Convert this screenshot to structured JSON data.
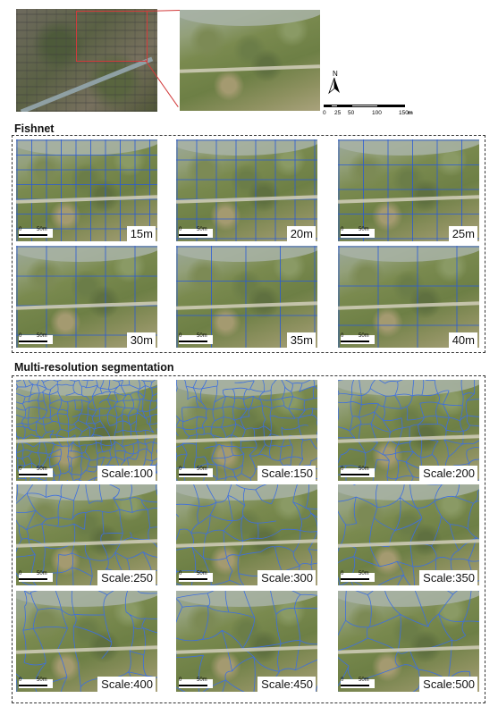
{
  "overview": {
    "north_label": "N",
    "scale_labels": [
      "0",
      "25",
      "50",
      "100",
      "150"
    ],
    "scale_unit": "m"
  },
  "fishnet": {
    "title": "Fishnet",
    "tiles": [
      {
        "label": "15m",
        "cell": 15
      },
      {
        "label": "20m",
        "cell": 20
      },
      {
        "label": "25m",
        "cell": 25
      },
      {
        "label": "30m",
        "cell": 30
      },
      {
        "label": "35m",
        "cell": 35
      },
      {
        "label": "40m",
        "cell": 40
      }
    ]
  },
  "segmentation": {
    "title": "Multi-resolution segmentation",
    "tiles": [
      {
        "label": "Scale:100",
        "scale": 100
      },
      {
        "label": "Scale:150",
        "scale": 150
      },
      {
        "label": "Scale:200",
        "scale": 200
      },
      {
        "label": "Scale:250",
        "scale": 250
      },
      {
        "label": "Scale:300",
        "scale": 300
      },
      {
        "label": "Scale:350",
        "scale": 350
      },
      {
        "label": "Scale:400",
        "scale": 400
      },
      {
        "label": "Scale:450",
        "scale": 450
      },
      {
        "label": "Scale:500",
        "scale": 500
      }
    ]
  },
  "tile_scalebar": {
    "zero": "0",
    "fifty": "50m"
  },
  "colors": {
    "grid": "#2a5bd7",
    "segment": "#3d6fe0",
    "highlight": "#d23a3a"
  }
}
